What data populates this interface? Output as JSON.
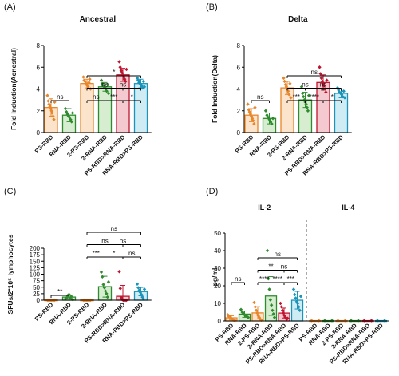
{
  "chart_data": [
    {
      "panel": "(A)",
      "type": "bar",
      "title": "Ancestral",
      "ylabel": "Fold Induction(Acnestral)",
      "ylim": [
        0,
        8
      ],
      "yticks": [
        "0",
        "2",
        "4",
        "6",
        "8"
      ],
      "categories": [
        "PS-RBD",
        "RNA-RBD",
        "2-PS-RBD",
        "2-RNA-RBD",
        "PS-RBD>RNA-RBD",
        "RNA-RBD>PS-RBD"
      ],
      "colors": [
        "#E8862A",
        "#2E8B2E",
        "#E8862A",
        "#2E8B2E",
        "#C0152F",
        "#1A94B8"
      ],
      "fills": [
        "#FBE3CC",
        "#D6EDD0",
        "#FBE3CC",
        "#D6EDD0",
        "#F4C9CF",
        "#CFEBF3"
      ],
      "values": [
        2.3,
        1.6,
        4.5,
        4.2,
        5.3,
        4.5
      ],
      "errors": [
        0.8,
        0.6,
        0.4,
        0.4,
        0.6,
        0.4
      ],
      "points": [
        [
          3.4,
          2.9,
          2.6,
          2.4,
          2.2,
          2.0,
          1.8,
          1.5,
          1.2,
          2.8
        ],
        [
          2.2,
          1.9,
          1.7,
          1.5,
          1.4,
          1.2,
          1.0,
          1.8
        ],
        [
          5.1,
          4.8,
          4.7,
          4.5,
          4.4,
          4.3,
          4.2,
          4.6,
          4.9,
          4.0
        ],
        [
          4.8,
          4.5,
          4.3,
          4.2,
          4.1,
          4.0,
          3.8,
          4.4,
          3.6
        ],
        [
          6.5,
          6.0,
          5.7,
          5.5,
          5.3,
          5.1,
          4.9,
          4.7,
          5.8
        ],
        [
          5.0,
          4.8,
          4.6,
          4.5,
          4.4,
          4.3,
          4.1,
          4.7,
          4.2
        ]
      ],
      "brackets": [
        {
          "from": 0,
          "to": 1,
          "label": "ns"
        },
        {
          "from": 2,
          "to": 3,
          "label": "ns"
        },
        {
          "from": 3,
          "to": 4,
          "label": "***"
        },
        {
          "from": 4,
          "to": 5,
          "label": "*"
        },
        {
          "from": 3,
          "to": 5,
          "label": "ns"
        },
        {
          "from": 2,
          "to": 4,
          "label": "ns"
        },
        {
          "from": 2,
          "to": 5,
          "label": "*"
        }
      ]
    },
    {
      "panel": "(B)",
      "type": "bar",
      "title": "Delta",
      "ylabel": "Fold Induction(Delta)",
      "ylim": [
        0,
        8
      ],
      "yticks": [
        "0",
        "2",
        "4",
        "6",
        "8"
      ],
      "categories": [
        "PS-RBD",
        "RNA-RBD",
        "2-PS-RBD",
        "2-RNA-RBD",
        "PS-RBD>RNA-RBD",
        "RNA-RBD>PS-RBD"
      ],
      "colors": [
        "#E8862A",
        "#2E8B2E",
        "#E8862A",
        "#2E8B2E",
        "#C0152F",
        "#1A94B8"
      ],
      "fills": [
        "#FBE3CC",
        "#D6EDD0",
        "#FBE3CC",
        "#D6EDD0",
        "#F4C9CF",
        "#CFEBF3"
      ],
      "values": [
        1.6,
        1.3,
        4.1,
        3.0,
        4.6,
        3.6
      ],
      "errors": [
        0.6,
        0.5,
        0.6,
        0.7,
        0.7,
        0.4
      ],
      "points": [
        [
          2.6,
          2.1,
          1.9,
          1.7,
          1.5,
          1.3,
          1.1,
          0.8,
          2.3
        ],
        [
          2.0,
          1.6,
          1.4,
          1.2,
          1.0,
          0.8,
          1.3
        ],
        [
          5.0,
          4.7,
          4.4,
          4.2,
          4.0,
          3.8,
          3.5,
          4.5,
          3.2
        ],
        [
          4.2,
          3.6,
          3.3,
          3.0,
          2.8,
          2.6,
          2.3,
          2.0,
          3.4
        ],
        [
          6.0,
          5.4,
          5.0,
          4.7,
          4.5,
          4.3,
          4.0,
          3.7,
          4.8
        ],
        [
          4.1,
          3.9,
          3.7,
          3.6,
          3.5,
          3.3,
          3.8,
          3.2
        ]
      ],
      "brackets": [
        {
          "from": 0,
          "to": 1,
          "label": "ns"
        },
        {
          "from": 2,
          "to": 3,
          "label": "***"
        },
        {
          "from": 3,
          "to": 4,
          "label": "****"
        },
        {
          "from": 4,
          "to": 5,
          "label": "*"
        },
        {
          "from": 3,
          "to": 5,
          "label": "ns"
        },
        {
          "from": 2,
          "to": 4,
          "label": "ns"
        },
        {
          "from": 2,
          "to": 5,
          "label": "ns"
        }
      ]
    },
    {
      "panel": "(C)",
      "type": "bar",
      "title": "",
      "ylabel": "SFUs/2*10⁵ lymphocytes",
      "ylim": [
        0,
        200
      ],
      "yticks": [
        "0",
        "25",
        "50",
        "75",
        "100",
        "125",
        "150",
        "175",
        "200"
      ],
      "categories": [
        "PS-RBD",
        "RNA-RBD",
        "2-PS-RBD",
        "2-RNA-RBD",
        "PS-RBD>RNA-RBD",
        "RNA-RBD>PS-RBD"
      ],
      "colors": [
        "#E8862A",
        "#2E8B2E",
        "#E8862A",
        "#2E8B2E",
        "#C0152F",
        "#1A94B8"
      ],
      "fills": [
        "#FBE3CC",
        "#D6EDD0",
        "#FBE3CC",
        "#D6EDD0",
        "#F4C9CF",
        "#CFEBF3"
      ],
      "values": [
        1,
        12,
        1,
        52,
        15,
        33
      ],
      "errors": [
        1,
        6,
        1,
        40,
        42,
        16
      ],
      "points": [
        [
          0,
          0,
          0,
          0,
          0,
          0,
          0,
          0
        ],
        [
          5,
          10,
          18,
          22,
          8,
          14,
          3
        ],
        [
          0,
          0,
          0,
          0,
          0,
          0,
          0,
          0
        ],
        [
          108,
          90,
          60,
          48,
          35,
          25,
          12,
          70
        ],
        [
          110,
          45,
          10,
          2,
          0,
          0,
          0,
          0
        ],
        [
          62,
          48,
          38,
          30,
          22,
          12,
          5,
          42
        ]
      ],
      "brackets": [
        {
          "from": 0,
          "to": 1,
          "label": "**"
        },
        {
          "from": 2,
          "to": 3,
          "label": "***"
        },
        {
          "from": 3,
          "to": 4,
          "label": "*"
        },
        {
          "from": 4,
          "to": 5,
          "label": "ns"
        },
        {
          "from": 3,
          "to": 5,
          "label": "ns"
        },
        {
          "from": 2,
          "to": 4,
          "label": "ns"
        },
        {
          "from": 2,
          "to": 5,
          "label": "ns"
        }
      ]
    },
    {
      "panel": "(D)",
      "type": "bar",
      "ylabel": "pg/ml",
      "ylim": [
        0,
        50
      ],
      "yticks": [
        "0",
        "10",
        "20",
        "30",
        "40",
        "50"
      ],
      "groups": [
        {
          "title": "IL-2",
          "categories": [
            "PS-RBD",
            "RNA-RBD",
            "2-PS-RBD",
            "2-RNA-RBD",
            "PS-RBD>RNA-RBD",
            "RNA-RBD>PS-RBD"
          ],
          "values": [
            1.8,
            3.9,
            4.6,
            14.2,
            4.5,
            11.8
          ],
          "errors": [
            1.2,
            1.8,
            3.5,
            11.0,
            2.8,
            5.0
          ],
          "points": [
            [
              3.5,
              2.5,
              2.0,
              1.5,
              1.0,
              0.5,
              0.2
            ],
            [
              6.5,
              5.0,
              4.5,
              3.5,
              3.0,
              2.5,
              2.0
            ],
            [
              10.5,
              8.0,
              6.0,
              4.5,
              3.0,
              2.0,
              1.0,
              0.5
            ],
            [
              40.0,
              24.0,
              18.0,
              12.0,
              9.0,
              6.0,
              4.0,
              2.0
            ],
            [
              10.0,
              8.0,
              6.0,
              4.5,
              3.0,
              2.0,
              1.0,
              1.5
            ],
            [
              18.0,
              15.0,
              13.0,
              11.0,
              10.0,
              8.0,
              6.0,
              14.0
            ]
          ],
          "brackets": [
            {
              "from": 0,
              "to": 1,
              "label": "ns"
            },
            {
              "from": 4,
              "to": 5,
              "label": "***"
            },
            {
              "from": 2,
              "to": 3,
              "label": "****"
            },
            {
              "from": 3,
              "to": 4,
              "label": "****"
            },
            {
              "from": 3,
              "to": 5,
              "label": "ns"
            },
            {
              "from": 2,
              "to": 4,
              "label": "**"
            },
            {
              "from": 2,
              "to": 5,
              "label": "ns"
            }
          ]
        },
        {
          "title": "IL-4",
          "categories": [
            "PS-RBD",
            "RNA-RBD",
            "2-PS-RBD",
            "2-RNA-RBD",
            "PS-RBD>RNA-RBD",
            "RNA-RBD>PS-RBD"
          ],
          "values": [
            0.2,
            0.2,
            0.2,
            0.2,
            0.2,
            0.2
          ],
          "errors": [
            0,
            0,
            0,
            0,
            0,
            0
          ],
          "points": [
            [
              0.2,
              0.2
            ],
            [
              0.2,
              0.2
            ],
            [
              0.2,
              0.2
            ],
            [
              0.2,
              0.2
            ],
            [
              0.2,
              0.2
            ],
            [
              0.2,
              0.2
            ]
          ],
          "brackets": []
        }
      ],
      "colors": [
        "#E8862A",
        "#2E8B2E",
        "#E8862A",
        "#2E8B2E",
        "#C0152F",
        "#1A94B8"
      ],
      "fills": [
        "#FBE3CC",
        "#D6EDD0",
        "#FBE3CC",
        "#D6EDD0",
        "#F4C9CF",
        "#CFEBF3"
      ]
    }
  ]
}
